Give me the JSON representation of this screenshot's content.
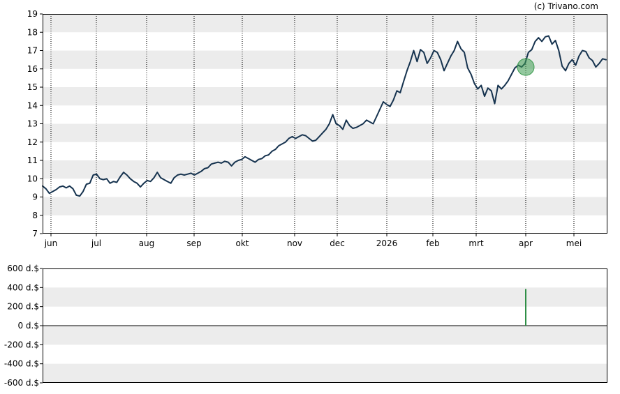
{
  "brand": "(c) Trivano.com",
  "chart_data": [
    {
      "type": "line",
      "ylim": [
        7,
        19
      ],
      "yticks": [
        "7",
        "8",
        "9",
        "10",
        "11",
        "12",
        "13",
        "14",
        "15",
        "16",
        "17",
        "18",
        "19"
      ],
      "xlabels": [
        "jun",
        "jul",
        "aug",
        "sep",
        "okt",
        "nov",
        "dec",
        "2026",
        "feb",
        "mrt",
        "apr",
        "mei"
      ],
      "grid": "alternating horizontal bands, dotted vertical lines at month starts",
      "color": "#16334f",
      "marker": {
        "label_index": 10,
        "day": 0,
        "value": 16.1,
        "color": "#3a9a4e"
      },
      "series": [
        {
          "points": [
            [
              0,
              9.6
            ],
            [
              2,
              9.45
            ],
            [
              4,
              9.2
            ],
            [
              6,
              9.3
            ],
            [
              8,
              9.4
            ],
            [
              10,
              9.55
            ],
            [
              12,
              9.6
            ],
            [
              14,
              9.5
            ],
            [
              16,
              9.6
            ],
            [
              18,
              9.45
            ],
            [
              20,
              9.1
            ],
            [
              22,
              9.05
            ],
            [
              24,
              9.3
            ],
            [
              26,
              9.7
            ],
            [
              28,
              9.75
            ],
            [
              30,
              10.2
            ],
            [
              32,
              10.25
            ],
            [
              34,
              10.0
            ],
            [
              36,
              9.95
            ],
            [
              38,
              10.0
            ],
            [
              40,
              9.75
            ],
            [
              42,
              9.85
            ],
            [
              44,
              9.8
            ],
            [
              46,
              10.1
            ],
            [
              48,
              10.35
            ],
            [
              50,
              10.2
            ],
            [
              52,
              10.0
            ],
            [
              54,
              9.85
            ],
            [
              56,
              9.75
            ],
            [
              58,
              9.55
            ],
            [
              60,
              9.75
            ],
            [
              62,
              9.9
            ],
            [
              64,
              9.85
            ],
            [
              66,
              10.05
            ],
            [
              68,
              10.35
            ],
            [
              70,
              10.05
            ],
            [
              72,
              9.95
            ],
            [
              74,
              9.85
            ],
            [
              76,
              9.75
            ],
            [
              78,
              10.05
            ],
            [
              80,
              10.2
            ],
            [
              82,
              10.25
            ],
            [
              84,
              10.2
            ],
            [
              86,
              10.25
            ],
            [
              88,
              10.3
            ],
            [
              90,
              10.2
            ],
            [
              92,
              10.3
            ],
            [
              94,
              10.4
            ],
            [
              96,
              10.55
            ],
            [
              98,
              10.6
            ],
            [
              100,
              10.8
            ],
            [
              102,
              10.85
            ],
            [
              104,
              10.9
            ],
            [
              106,
              10.85
            ],
            [
              108,
              10.95
            ],
            [
              110,
              10.9
            ],
            [
              112,
              10.7
            ],
            [
              114,
              10.9
            ],
            [
              116,
              11.0
            ],
            [
              118,
              11.05
            ],
            [
              120,
              11.2
            ],
            [
              122,
              11.1
            ],
            [
              124,
              11.0
            ],
            [
              126,
              10.9
            ],
            [
              128,
              11.05
            ],
            [
              130,
              11.1
            ],
            [
              132,
              11.25
            ],
            [
              134,
              11.3
            ],
            [
              136,
              11.5
            ],
            [
              138,
              11.6
            ],
            [
              140,
              11.8
            ],
            [
              142,
              11.9
            ],
            [
              144,
              12.0
            ],
            [
              146,
              12.2
            ],
            [
              148,
              12.3
            ],
            [
              150,
              12.2
            ],
            [
              152,
              12.3
            ],
            [
              154,
              12.4
            ],
            [
              156,
              12.35
            ],
            [
              158,
              12.2
            ],
            [
              160,
              12.05
            ],
            [
              162,
              12.1
            ],
            [
              164,
              12.3
            ],
            [
              166,
              12.5
            ],
            [
              168,
              12.7
            ],
            [
              170,
              13.0
            ],
            [
              172,
              13.5
            ],
            [
              174,
              13.0
            ],
            [
              176,
              12.9
            ],
            [
              178,
              12.7
            ],
            [
              180,
              13.2
            ],
            [
              182,
              12.9
            ],
            [
              184,
              12.75
            ],
            [
              186,
              12.8
            ],
            [
              188,
              12.9
            ],
            [
              190,
              13.0
            ],
            [
              192,
              13.2
            ],
            [
              194,
              13.1
            ],
            [
              196,
              13.0
            ],
            [
              198,
              13.4
            ],
            [
              200,
              13.8
            ],
            [
              202,
              14.2
            ],
            [
              204,
              14.05
            ],
            [
              206,
              13.95
            ],
            [
              208,
              14.3
            ],
            [
              210,
              14.8
            ],
            [
              212,
              14.7
            ],
            [
              214,
              15.3
            ],
            [
              216,
              15.9
            ],
            [
              218,
              16.4
            ],
            [
              220,
              17.0
            ],
            [
              222,
              16.4
            ],
            [
              224,
              17.05
            ],
            [
              226,
              16.9
            ],
            [
              228,
              16.3
            ],
            [
              230,
              16.6
            ],
            [
              232,
              17.0
            ],
            [
              234,
              16.9
            ],
            [
              236,
              16.5
            ],
            [
              238,
              15.9
            ],
            [
              240,
              16.3
            ],
            [
              242,
              16.7
            ],
            [
              244,
              17.0
            ],
            [
              246,
              17.5
            ],
            [
              248,
              17.1
            ],
            [
              250,
              16.9
            ],
            [
              252,
              16.05
            ],
            [
              254,
              15.7
            ],
            [
              256,
              15.2
            ],
            [
              258,
              14.9
            ],
            [
              260,
              15.1
            ],
            [
              262,
              14.5
            ],
            [
              264,
              14.95
            ],
            [
              266,
              14.8
            ],
            [
              268,
              14.1
            ],
            [
              270,
              15.1
            ],
            [
              272,
              14.9
            ],
            [
              274,
              15.1
            ],
            [
              276,
              15.35
            ],
            [
              278,
              15.7
            ],
            [
              280,
              16.05
            ],
            [
              282,
              16.2
            ],
            [
              284,
              16.1
            ],
            [
              286,
              16.3
            ],
            [
              288,
              16.9
            ],
            [
              290,
              17.05
            ],
            [
              292,
              17.5
            ],
            [
              294,
              17.7
            ],
            [
              296,
              17.5
            ],
            [
              298,
              17.75
            ],
            [
              300,
              17.8
            ],
            [
              302,
              17.35
            ],
            [
              304,
              17.55
            ],
            [
              306,
              17.0
            ],
            [
              308,
              16.15
            ],
            [
              310,
              15.9
            ],
            [
              312,
              16.3
            ],
            [
              314,
              16.5
            ],
            [
              316,
              16.2
            ],
            [
              318,
              16.7
            ],
            [
              320,
              17.0
            ],
            [
              322,
              16.95
            ],
            [
              324,
              16.6
            ],
            [
              326,
              16.45
            ],
            [
              328,
              16.1
            ],
            [
              330,
              16.3
            ],
            [
              332,
              16.55
            ],
            [
              334,
              16.5
            ]
          ]
        }
      ]
    },
    {
      "type": "bar",
      "ylim": [
        -600,
        600
      ],
      "yticks": [
        "600 d.$",
        "400 d.$",
        "200 d.$",
        "0 d.$",
        "-200 d.$",
        "-400 d.$",
        "-600 d.$"
      ],
      "grid": "alternating horizontal bands",
      "color": "#2f8f46",
      "bars": [
        {
          "day": 0,
          "label_index": 10,
          "value": 385
        }
      ]
    }
  ]
}
